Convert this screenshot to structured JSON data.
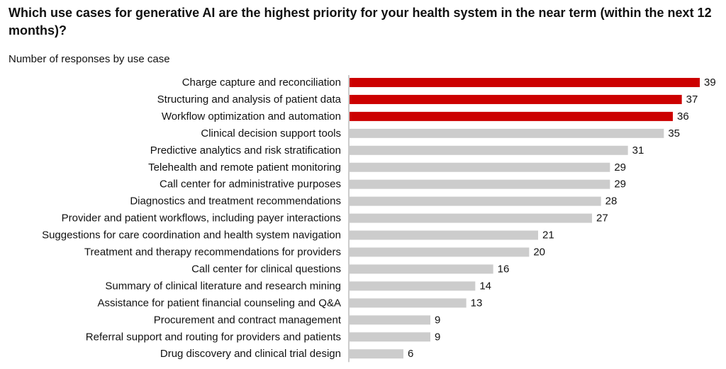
{
  "chart_data": {
    "type": "bar",
    "orientation": "horizontal",
    "title": "Which use cases for generative AI are the highest priority for your health system in the near term (within the next 12 months)?",
    "subtitle": "Number of responses by use case",
    "categories": [
      "Charge capture and reconciliation",
      "Structuring and analysis of patient data",
      "Workflow optimization and automation",
      "Clinical decision support tools",
      "Predictive analytics and risk stratification",
      "Telehealth and remote patient monitoring",
      "Call center for administrative purposes",
      "Diagnostics and treatment recommendations",
      "Provider and patient workflows, including payer interactions",
      "Suggestions for care coordination and health system navigation",
      "Treatment and therapy recommendations for providers",
      "Call center for clinical questions",
      "Summary of clinical literature and research mining",
      "Assistance for patient financial counseling and Q&A",
      "Procurement and contract management",
      "Referral support and routing for providers and patients",
      "Drug discovery and clinical trial design"
    ],
    "values": [
      39,
      37,
      36,
      35,
      31,
      29,
      29,
      28,
      27,
      21,
      20,
      16,
      14,
      13,
      9,
      9,
      6
    ],
    "highlighted": [
      true,
      true,
      true,
      false,
      false,
      false,
      false,
      false,
      false,
      false,
      false,
      false,
      false,
      false,
      false,
      false,
      false
    ],
    "colors": {
      "highlight": "#cc0000",
      "default": "#cccccc"
    },
    "xlim": [
      0,
      39
    ],
    "grid": false,
    "legend": "none"
  }
}
